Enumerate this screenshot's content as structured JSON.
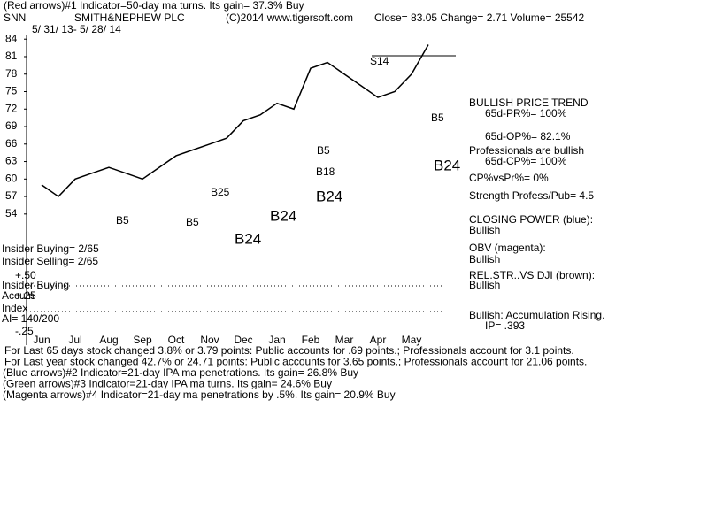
{
  "header": {
    "indicator": "(Red arrows)#1 Indicator=50-day ma turns.  Its gain= 37.3% Buy",
    "symbol": "SNN",
    "company": "SMITH&NEPHEW PLC",
    "copyright": "(C)2014 www.tigersoft.com",
    "quote": "Close=  83.05  Change= 2.71  Volume= 25542",
    "dates": "5/ 31/ 13- 5/ 28/ 14"
  },
  "chart_data": {
    "type": "line",
    "color": "#000000",
    "categories": [
      "Jun",
      null,
      "Jul",
      null,
      "Aug",
      null,
      "Sep",
      null,
      "Oct",
      null,
      "Nov",
      null,
      "Dec",
      null,
      "Jan",
      null,
      "Feb",
      null,
      "Mar",
      null,
      "Apr",
      null,
      "May",
      null
    ],
    "values": [
      59,
      57,
      60,
      61,
      62,
      61,
      60,
      62,
      64,
      65,
      66,
      67,
      70,
      71,
      73,
      72,
      79,
      80,
      78,
      76,
      74,
      75,
      78,
      83.05
    ],
    "ylim": [
      52,
      85.4
    ],
    "yticks": [
      84,
      81,
      78,
      75,
      72,
      69,
      66,
      63,
      60,
      57,
      54
    ],
    "grid": false,
    "annotations": [
      "S14",
      "B5",
      "B5",
      "B25",
      "B5",
      "B5",
      "B18",
      "B24",
      "B24",
      "B24",
      "B24"
    ]
  },
  "lower_panel": {
    "insider_buying": "Insider Buying= 2/65",
    "insider_selling": "Insider Selling= 2/65",
    "insider_buying2": "Insider Buying",
    "accum": "Accum",
    "index": "Index",
    "ai": "AI= 140/200",
    "p50": "+.50",
    "p25": "+.25",
    "m25": "-.25"
  },
  "side_panel": [
    "BULLISH PRICE TREND",
    "65d-PR%= 100%",
    "65d-OP%= 82.1%",
    "Professionals are bullish",
    "65d-CP%= 100%",
    "CP%vsPr%=  0%",
    "Strength Profess/Pub= 4.5",
    "CLOSING POWER (blue):",
    "Bullish",
    "OBV (magenta):",
    "Bullish",
    "REL.STR..VS DJI (brown):",
    "Bullish",
    "Bullish: Accumulation Rising.",
    "IP=  .393"
  ],
  "footer": [
    "For Last 65 days stock changed  3.8% or  3.79 points:  Public accounts for  .69 points.;  Professionals account for  3.1 points.",
    "For Last year stock changed  42.7% or  24.71 points:  Public accounts for  3.65 points.;  Professionals account for  21.06 points.",
    "(Blue arrows)#2 Indicator=21-day IPA ma penetrations.  Its gain= 26.8% Buy",
    "(Green arrows)#3 Indicator=21-day IPA ma turns.  Its gain= 24.6% Buy",
    "(Magenta arrows)#4 Indicator=21-day ma penetrations by .5%.  Its gain= 20.9% Buy"
  ]
}
